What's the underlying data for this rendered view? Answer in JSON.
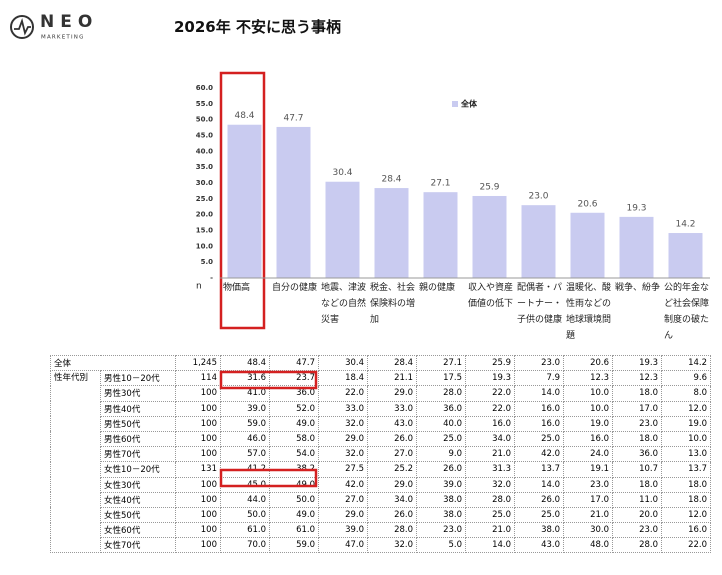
{
  "logo": {
    "name": "NEO",
    "sub": "MARKETING"
  },
  "chart_data": {
    "type": "bar",
    "title": "2026年 不安に思う事柄",
    "categories": [
      "物価高",
      "自分の健康",
      "地震、津波などの自然災害",
      "税金、社会保険料の増加",
      "親の健康",
      "収入や資産価値の低下",
      "配偶者・パートナー・子供の健康",
      "温暖化、酸性雨などの地球環境問題",
      "戦争、紛争",
      "公的年金など社会保障制度の破たん"
    ],
    "series": [
      {
        "name": "全体",
        "color": "#c9cbf0",
        "values": [
          48.4,
          47.7,
          30.4,
          28.4,
          27.1,
          25.9,
          23.0,
          20.6,
          19.3,
          14.2
        ],
        "value_labels": [
          "48.4",
          "47.7",
          "30.4",
          "28.4",
          "27.1",
          "25.9",
          "23.0",
          "20.6",
          "19.3",
          "14.2"
        ]
      }
    ],
    "ylim": [
      0,
      60
    ],
    "yticks": [
      {
        "value": 60,
        "label": "60.0"
      },
      {
        "value": 55,
        "label": "55.0"
      },
      {
        "value": 50,
        "label": "50.0"
      },
      {
        "value": 45,
        "label": "45.0"
      },
      {
        "value": 40,
        "label": "40.0"
      },
      {
        "value": 35,
        "label": "35.0"
      },
      {
        "value": 30,
        "label": "30.0"
      },
      {
        "value": 25,
        "label": "25.0"
      },
      {
        "value": 20,
        "label": "20.0"
      },
      {
        "value": 15,
        "label": "15.0"
      },
      {
        "value": 10,
        "label": "10.0"
      },
      {
        "value": 5,
        "label": "5.0"
      },
      {
        "value": 0,
        "label": "-"
      }
    ],
    "grid": false,
    "legend": "upper-center",
    "n_label": "n"
  },
  "table": {
    "group_label": "性年代別",
    "rows": [
      {
        "label": "全体",
        "n": "1,245",
        "values": [
          "48.4",
          "47.7",
          "30.4",
          "28.4",
          "27.1",
          "25.9",
          "23.0",
          "20.6",
          "19.3",
          "14.2"
        ]
      },
      {
        "label": "男性10－20代",
        "n": "114",
        "values": [
          "31.6",
          "23.7",
          "18.4",
          "21.1",
          "17.5",
          "19.3",
          "7.9",
          "12.3",
          "12.3",
          "9.6"
        ]
      },
      {
        "label": "男性30代",
        "n": "100",
        "values": [
          "41.0",
          "36.0",
          "22.0",
          "29.0",
          "28.0",
          "22.0",
          "14.0",
          "10.0",
          "18.0",
          "8.0"
        ]
      },
      {
        "label": "男性40代",
        "n": "100",
        "values": [
          "39.0",
          "52.0",
          "33.0",
          "33.0",
          "36.0",
          "22.0",
          "16.0",
          "10.0",
          "17.0",
          "12.0"
        ]
      },
      {
        "label": "男性50代",
        "n": "100",
        "values": [
          "59.0",
          "49.0",
          "32.0",
          "43.0",
          "40.0",
          "16.0",
          "16.0",
          "19.0",
          "23.0",
          "19.0"
        ]
      },
      {
        "label": "男性60代",
        "n": "100",
        "values": [
          "46.0",
          "58.0",
          "29.0",
          "26.0",
          "25.0",
          "34.0",
          "25.0",
          "16.0",
          "18.0",
          "10.0"
        ]
      },
      {
        "label": "男性70代",
        "n": "100",
        "values": [
          "57.0",
          "54.0",
          "32.0",
          "27.0",
          "9.0",
          "21.0",
          "42.0",
          "24.0",
          "36.0",
          "13.0"
        ]
      },
      {
        "label": "女性10－20代",
        "n": "131",
        "values": [
          "41.2",
          "38.2",
          "27.5",
          "25.2",
          "26.0",
          "31.3",
          "13.7",
          "19.1",
          "10.7",
          "13.7"
        ]
      },
      {
        "label": "女性30代",
        "n": "100",
        "values": [
          "45.0",
          "49.0",
          "42.0",
          "29.0",
          "39.0",
          "32.0",
          "14.0",
          "23.0",
          "18.0",
          "18.0"
        ]
      },
      {
        "label": "女性40代",
        "n": "100",
        "values": [
          "44.0",
          "50.0",
          "27.0",
          "34.0",
          "38.0",
          "28.0",
          "26.0",
          "17.0",
          "11.0",
          "18.0"
        ]
      },
      {
        "label": "女性50代",
        "n": "100",
        "values": [
          "50.0",
          "49.0",
          "29.0",
          "26.0",
          "38.0",
          "25.0",
          "25.0",
          "21.0",
          "20.0",
          "12.0"
        ]
      },
      {
        "label": "女性60代",
        "n": "100",
        "values": [
          "61.0",
          "61.0",
          "39.0",
          "28.0",
          "23.0",
          "21.0",
          "38.0",
          "30.0",
          "23.0",
          "16.0"
        ]
      },
      {
        "label": "女性70代",
        "n": "100",
        "values": [
          "70.0",
          "59.0",
          "47.0",
          "32.0",
          "5.0",
          "14.0",
          "43.0",
          "48.0",
          "28.0",
          "22.0"
        ]
      }
    ]
  }
}
